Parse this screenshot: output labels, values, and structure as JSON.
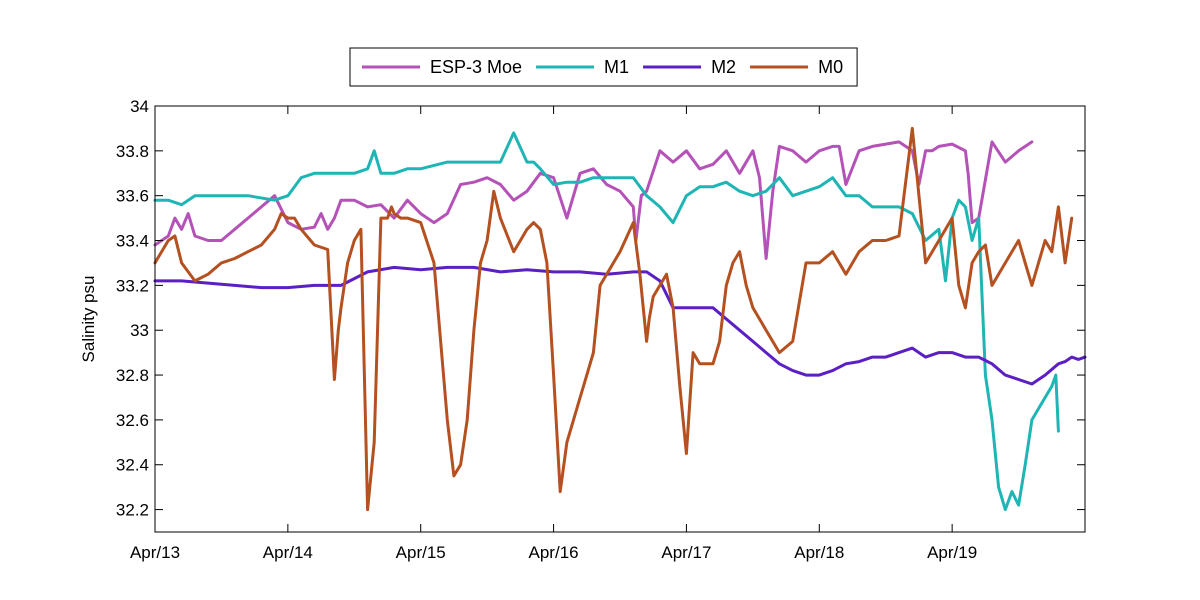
{
  "chart_data": {
    "type": "line",
    "title": "",
    "xlabel": "",
    "ylabel": "Salinity psu",
    "xlim": [
      0,
      7.0
    ],
    "ylim": [
      32.1,
      34
    ],
    "grid": false,
    "legend_position": "top-outside",
    "x_ticks": [
      {
        "value": 0,
        "label": "Apr/13"
      },
      {
        "value": 1,
        "label": "Apr/14"
      },
      {
        "value": 2,
        "label": "Apr/15"
      },
      {
        "value": 3,
        "label": "Apr/16"
      },
      {
        "value": 4,
        "label": "Apr/17"
      },
      {
        "value": 5,
        "label": "Apr/18"
      },
      {
        "value": 6,
        "label": "Apr/19"
      }
    ],
    "y_ticks": [
      {
        "value": 32.2,
        "label": "32.2"
      },
      {
        "value": 32.4,
        "label": "32.4"
      },
      {
        "value": 32.6,
        "label": "32.6"
      },
      {
        "value": 32.8,
        "label": "32.8"
      },
      {
        "value": 33.0,
        "label": "33"
      },
      {
        "value": 33.2,
        "label": "33.2"
      },
      {
        "value": 33.4,
        "label": "33.4"
      },
      {
        "value": 33.6,
        "label": "33.6"
      },
      {
        "value": 33.8,
        "label": "33.8"
      },
      {
        "value": 34.0,
        "label": "34"
      }
    ],
    "series": [
      {
        "name": "ESP-3 Moe",
        "color": "#b552b8",
        "x": [
          0.0,
          0.1,
          0.15,
          0.2,
          0.25,
          0.3,
          0.4,
          0.5,
          0.6,
          0.7,
          0.8,
          0.9,
          1.0,
          1.1,
          1.2,
          1.25,
          1.3,
          1.35,
          1.4,
          1.5,
          1.6,
          1.7,
          1.8,
          1.9,
          2.0,
          2.1,
          2.2,
          2.3,
          2.4,
          2.5,
          2.6,
          2.7,
          2.8,
          2.9,
          3.0,
          3.1,
          3.2,
          3.3,
          3.4,
          3.5,
          3.6,
          3.62,
          3.66,
          3.7,
          3.8,
          3.9,
          4.0,
          4.1,
          4.2,
          4.3,
          4.4,
          4.5,
          4.55,
          4.6,
          4.65,
          4.7,
          4.8,
          4.9,
          5.0,
          5.1,
          5.15,
          5.2,
          5.3,
          5.4,
          5.5,
          5.6,
          5.7,
          5.75,
          5.8,
          5.85,
          5.9,
          6.0,
          6.1,
          6.12,
          6.15,
          6.2,
          6.3,
          6.4,
          6.5,
          6.55,
          6.6
        ],
        "y": [
          33.38,
          33.42,
          33.5,
          33.45,
          33.52,
          33.42,
          33.4,
          33.4,
          33.45,
          33.5,
          33.55,
          33.6,
          33.48,
          33.45,
          33.46,
          33.52,
          33.45,
          33.5,
          33.58,
          33.58,
          33.55,
          33.56,
          33.5,
          33.58,
          33.52,
          33.48,
          33.52,
          33.65,
          33.66,
          33.68,
          33.65,
          33.58,
          33.62,
          33.7,
          33.68,
          33.5,
          33.7,
          33.72,
          33.65,
          33.62,
          33.55,
          33.4,
          33.6,
          33.62,
          33.8,
          33.75,
          33.8,
          33.72,
          33.74,
          33.8,
          33.7,
          33.8,
          33.68,
          33.32,
          33.62,
          33.82,
          33.8,
          33.75,
          33.8,
          33.82,
          33.82,
          33.65,
          33.8,
          33.82,
          33.83,
          33.84,
          33.8,
          33.65,
          33.8,
          33.8,
          33.82,
          33.83,
          33.8,
          33.7,
          33.48,
          33.5,
          33.84,
          33.75,
          33.8,
          33.82,
          33.84
        ]
      },
      {
        "name": "M1",
        "color": "#1fb5b5",
        "x": [
          0.0,
          0.1,
          0.2,
          0.3,
          0.5,
          0.7,
          0.9,
          1.0,
          1.1,
          1.2,
          1.3,
          1.5,
          1.6,
          1.65,
          1.7,
          1.8,
          1.9,
          2.0,
          2.2,
          2.4,
          2.6,
          2.7,
          2.8,
          2.85,
          2.9,
          3.0,
          3.1,
          3.2,
          3.3,
          3.4,
          3.5,
          3.6,
          3.7,
          3.8,
          3.9,
          4.0,
          4.05,
          4.1,
          4.2,
          4.3,
          4.4,
          4.5,
          4.6,
          4.7,
          4.8,
          4.9,
          5.0,
          5.1,
          5.2,
          5.3,
          5.4,
          5.5,
          5.6,
          5.7,
          5.8,
          5.9,
          5.95,
          6.0,
          6.05,
          6.1,
          6.15,
          6.2,
          6.25,
          6.3,
          6.35,
          6.4,
          6.45,
          6.5,
          6.55,
          6.6,
          6.7,
          6.75,
          6.78,
          6.8
        ],
        "y": [
          33.58,
          33.58,
          33.56,
          33.6,
          33.6,
          33.6,
          33.58,
          33.6,
          33.68,
          33.7,
          33.7,
          33.7,
          33.72,
          33.8,
          33.7,
          33.7,
          33.72,
          33.72,
          33.75,
          33.75,
          33.75,
          33.88,
          33.75,
          33.75,
          33.72,
          33.65,
          33.66,
          33.66,
          33.68,
          33.68,
          33.68,
          33.68,
          33.6,
          33.55,
          33.48,
          33.6,
          33.62,
          33.64,
          33.64,
          33.66,
          33.62,
          33.6,
          33.62,
          33.68,
          33.6,
          33.62,
          33.64,
          33.68,
          33.6,
          33.6,
          33.55,
          33.55,
          33.55,
          33.52,
          33.4,
          33.45,
          33.22,
          33.5,
          33.58,
          33.55,
          33.4,
          33.5,
          32.8,
          32.6,
          32.3,
          32.2,
          32.28,
          32.22,
          32.4,
          32.6,
          32.7,
          32.75,
          32.8,
          32.55
        ]
      },
      {
        "name": "M2",
        "color": "#5b1fc4",
        "x": [
          0.0,
          0.2,
          0.4,
          0.6,
          0.8,
          1.0,
          1.2,
          1.4,
          1.6,
          1.8,
          2.0,
          2.2,
          2.4,
          2.6,
          2.8,
          3.0,
          3.2,
          3.4,
          3.6,
          3.7,
          3.8,
          3.9,
          4.0,
          4.1,
          4.2,
          4.3,
          4.4,
          4.5,
          4.6,
          4.7,
          4.8,
          4.9,
          5.0,
          5.1,
          5.2,
          5.3,
          5.4,
          5.5,
          5.6,
          5.7,
          5.8,
          5.9,
          6.0,
          6.1,
          6.2,
          6.3,
          6.4,
          6.5,
          6.6,
          6.7,
          6.8,
          6.85,
          6.9,
          6.95,
          7.0
        ],
        "y": [
          33.22,
          33.22,
          33.21,
          33.2,
          33.19,
          33.19,
          33.2,
          33.2,
          33.26,
          33.28,
          33.27,
          33.28,
          33.28,
          33.26,
          33.27,
          33.26,
          33.26,
          33.25,
          33.26,
          33.26,
          33.22,
          33.1,
          33.1,
          33.1,
          33.1,
          33.05,
          33.0,
          32.95,
          32.9,
          32.85,
          32.82,
          32.8,
          32.8,
          32.82,
          32.85,
          32.86,
          32.88,
          32.88,
          32.9,
          32.92,
          32.88,
          32.9,
          32.9,
          32.88,
          32.88,
          32.85,
          32.8,
          32.78,
          32.76,
          32.8,
          32.85,
          32.86,
          32.88,
          32.87,
          32.88
        ]
      },
      {
        "name": "M0",
        "color": "#b55020",
        "x": [
          0.0,
          0.05,
          0.1,
          0.15,
          0.2,
          0.3,
          0.4,
          0.5,
          0.6,
          0.7,
          0.8,
          0.9,
          0.95,
          1.0,
          1.05,
          1.1,
          1.2,
          1.3,
          1.35,
          1.38,
          1.4,
          1.45,
          1.5,
          1.55,
          1.6,
          1.65,
          1.7,
          1.75,
          1.78,
          1.8,
          1.85,
          1.9,
          2.0,
          2.1,
          2.2,
          2.25,
          2.3,
          2.35,
          2.4,
          2.45,
          2.5,
          2.55,
          2.6,
          2.7,
          2.75,
          2.8,
          2.85,
          2.9,
          2.95,
          3.0,
          3.05,
          3.1,
          3.15,
          3.2,
          3.25,
          3.3,
          3.35,
          3.4,
          3.5,
          3.6,
          3.65,
          3.7,
          3.72,
          3.75,
          3.8,
          3.85,
          3.9,
          3.95,
          4.0,
          4.05,
          4.1,
          4.2,
          4.25,
          4.3,
          4.35,
          4.4,
          4.45,
          4.5,
          4.6,
          4.7,
          4.8,
          4.9,
          5.0,
          5.1,
          5.2,
          5.25,
          5.3,
          5.4,
          5.5,
          5.6,
          5.7,
          5.8,
          5.9,
          6.0,
          6.05,
          6.1,
          6.15,
          6.2,
          6.25,
          6.3,
          6.35,
          6.4,
          6.45,
          6.5,
          6.55,
          6.6,
          6.65,
          6.7,
          6.75,
          6.8,
          6.85,
          6.9
        ],
        "y": [
          33.3,
          33.35,
          33.4,
          33.42,
          33.3,
          33.22,
          33.25,
          33.3,
          33.32,
          33.35,
          33.38,
          33.45,
          33.52,
          33.5,
          33.5,
          33.45,
          33.38,
          33.36,
          32.78,
          33.0,
          33.1,
          33.3,
          33.4,
          33.45,
          32.2,
          32.5,
          33.5,
          33.5,
          33.55,
          33.52,
          33.5,
          33.5,
          33.48,
          33.3,
          32.6,
          32.35,
          32.4,
          32.6,
          33.0,
          33.3,
          33.4,
          33.62,
          33.5,
          33.35,
          33.4,
          33.45,
          33.48,
          33.45,
          33.3,
          32.8,
          32.28,
          32.5,
          32.6,
          32.7,
          32.8,
          32.9,
          33.2,
          33.25,
          33.35,
          33.48,
          33.25,
          32.95,
          33.05,
          33.15,
          33.2,
          33.25,
          33.1,
          32.75,
          32.45,
          32.9,
          32.85,
          32.85,
          32.95,
          33.2,
          33.3,
          33.35,
          33.2,
          33.1,
          33.0,
          32.9,
          32.95,
          33.3,
          33.3,
          33.35,
          33.25,
          33.3,
          33.35,
          33.4,
          33.4,
          33.42,
          33.9,
          33.3,
          33.4,
          33.5,
          33.2,
          33.1,
          33.3,
          33.35,
          33.38,
          33.2,
          33.25,
          33.3,
          33.35,
          33.4,
          33.3,
          33.2,
          33.3,
          33.4,
          33.35,
          33.55,
          33.3,
          33.5
        ]
      }
    ]
  }
}
